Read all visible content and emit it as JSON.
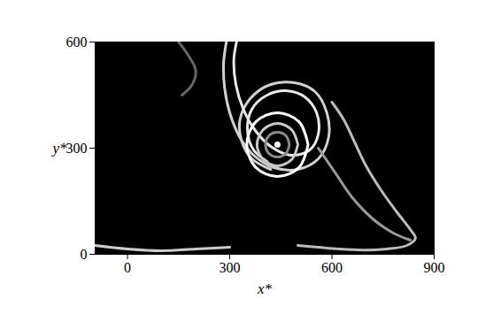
{
  "chart_data": {
    "type": "line",
    "x_label": "x*",
    "y_label": "y*",
    "xlim": [
      -95,
      900
    ],
    "ylim": [
      0,
      600
    ],
    "xticks": [
      0,
      300,
      600,
      900
    ],
    "yticks": [
      0,
      300,
      600
    ],
    "grid": false,
    "series": [
      {
        "color": "#d0d0d0",
        "x": [
          290,
          282,
          285,
          300,
          330,
          370,
          430,
          500,
          560,
          590,
          585,
          550,
          490,
          420,
          360,
          330,
          335,
          365,
          420
        ],
        "y": [
          600,
          540,
          470,
          400,
          330,
          280,
          245,
          240,
          270,
          330,
          400,
          460,
          485,
          480,
          440,
          380,
          320,
          270,
          240
        ]
      },
      {
        "color": "#e8e8e8",
        "x": [
          320,
          312,
          318,
          340,
          375,
          420,
          480,
          535,
          560,
          555,
          520,
          470,
          410,
          365,
          352,
          370,
          410
        ],
        "y": [
          600,
          550,
          480,
          410,
          350,
          305,
          280,
          295,
          340,
          400,
          445,
          462,
          450,
          410,
          350,
          295,
          262
        ]
      },
      {
        "color": "#bbbbbb",
        "x": [
          600,
          635,
          665,
          700,
          745,
          790,
          830,
          845,
          820,
          760,
          690,
          620,
          560,
          500
        ],
        "y": [
          430,
          380,
          320,
          250,
          180,
          120,
          70,
          45,
          25,
          15,
          12,
          15,
          20,
          25
        ]
      },
      {
        "color": "#9a9a9a",
        "x": [
          560,
          610,
          660,
          720,
          780,
          830
        ],
        "y": [
          300,
          230,
          160,
          100,
          60,
          40
        ]
      },
      {
        "color": "#ffffff",
        "x": [
          530,
          504,
          440,
          376,
          350,
          376,
          440,
          504,
          530
        ],
        "y": [
          310,
          374,
          400,
          374,
          310,
          246,
          220,
          246,
          310
        ]
      },
      {
        "color": "#c8c8c8",
        "x": [
          500,
          482,
          440,
          398,
          380,
          398,
          440,
          482,
          500
        ],
        "y": [
          310,
          352,
          370,
          352,
          310,
          268,
          250,
          268,
          310
        ]
      },
      {
        "color": "#8a8a8a",
        "x": [
          475,
          465,
          440,
          415,
          405,
          415,
          440,
          465,
          475
        ],
        "y": [
          310,
          335,
          345,
          335,
          310,
          285,
          275,
          285,
          310
        ]
      },
      {
        "color": "#cccccc",
        "x": [
          -95,
          0,
          100,
          200,
          300
        ],
        "y": [
          25,
          15,
          10,
          15,
          20
        ]
      },
      {
        "color": "#666666",
        "x": [
          150,
          180,
          200,
          190,
          160
        ],
        "y": [
          600,
          560,
          520,
          480,
          450
        ]
      },
      {
        "color": "#ffffff",
        "type": "scatter",
        "marker": "circle",
        "x": [
          440
        ],
        "y": [
          310
        ]
      }
    ]
  }
}
